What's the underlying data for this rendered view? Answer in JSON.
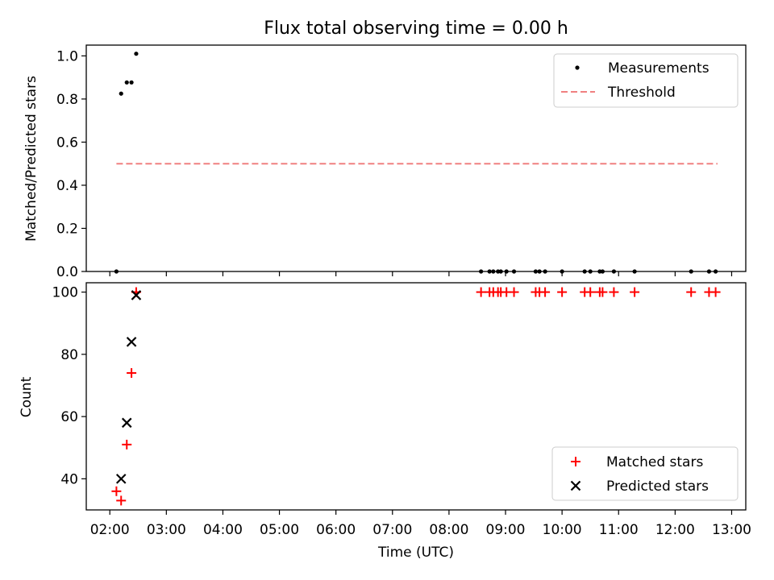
{
  "chart_data": [
    {
      "type": "scatter",
      "title": "Flux total observing time = 0.00 h",
      "xlabel": "",
      "ylabel": "Matched/Predicted stars",
      "ylim": [
        0,
        1.05
      ],
      "yticks": [
        "0.0",
        "0.2",
        "0.4",
        "0.6",
        "0.8",
        "1.0"
      ],
      "ytick_values": [
        0.0,
        0.2,
        0.4,
        0.6,
        0.8,
        1.0
      ],
      "grid": false,
      "legend_position": "top-right",
      "series": [
        {
          "name": "Measurements",
          "marker": "dot",
          "color": "#000000",
          "points": [
            [
              "02:07",
              0.0
            ],
            [
              "02:12",
              0.825
            ],
            [
              "02:18",
              0.877
            ],
            [
              "02:23",
              0.877
            ],
            [
              "02:28",
              1.01
            ],
            [
              "08:34",
              0.0
            ],
            [
              "08:43",
              0.0
            ],
            [
              "08:47",
              0.0
            ],
            [
              "08:52",
              0.0
            ],
            [
              "08:55",
              0.0
            ],
            [
              "09:01",
              0.0
            ],
            [
              "09:09",
              0.0
            ],
            [
              "09:32",
              0.0
            ],
            [
              "09:36",
              0.0
            ],
            [
              "09:42",
              0.0
            ],
            [
              "10:00",
              0.0
            ],
            [
              "10:24",
              0.0
            ],
            [
              "10:30",
              0.0
            ],
            [
              "10:40",
              0.0
            ],
            [
              "10:43",
              0.0
            ],
            [
              "10:55",
              0.0
            ],
            [
              "11:17",
              0.0
            ],
            [
              "12:17",
              0.0
            ],
            [
              "12:36",
              0.0
            ],
            [
              "12:43",
              0.0
            ]
          ]
        },
        {
          "name": "Threshold",
          "line": "dashed",
          "color": "#f08080",
          "points": [
            [
              "02:07",
              0.5
            ],
            [
              "12:45",
              0.5
            ]
          ]
        }
      ]
    },
    {
      "type": "scatter",
      "title": "",
      "xlabel": "Time (UTC)",
      "ylabel": "Count",
      "ylim": [
        30,
        103
      ],
      "yticks": [
        "40",
        "60",
        "80",
        "100"
      ],
      "ytick_values": [
        40,
        60,
        80,
        100
      ],
      "xlim": [
        "01:35",
        "13:15"
      ],
      "xticks": [
        "02:00",
        "03:00",
        "04:00",
        "05:00",
        "06:00",
        "07:00",
        "08:00",
        "09:00",
        "10:00",
        "11:00",
        "12:00",
        "13:00"
      ],
      "grid": false,
      "legend_position": "bottom-right",
      "series": [
        {
          "name": "Matched stars",
          "marker": "plus",
          "color": "#ff0000",
          "points": [
            [
              "02:07",
              36
            ],
            [
              "02:12",
              33
            ],
            [
              "02:18",
              51
            ],
            [
              "02:23",
              74
            ],
            [
              "02:28",
              100
            ],
            [
              "08:34",
              100
            ],
            [
              "08:43",
              100
            ],
            [
              "08:47",
              100
            ],
            [
              "08:52",
              100
            ],
            [
              "08:55",
              100
            ],
            [
              "09:01",
              100
            ],
            [
              "09:09",
              100
            ],
            [
              "09:32",
              100
            ],
            [
              "09:36",
              100
            ],
            [
              "09:42",
              100
            ],
            [
              "10:00",
              100
            ],
            [
              "10:24",
              100
            ],
            [
              "10:30",
              100
            ],
            [
              "10:40",
              100
            ],
            [
              "10:43",
              100
            ],
            [
              "10:55",
              100
            ],
            [
              "11:17",
              100
            ],
            [
              "12:17",
              100
            ],
            [
              "12:36",
              100
            ],
            [
              "12:43",
              100
            ]
          ]
        },
        {
          "name": "Predicted stars",
          "marker": "x",
          "color": "#000000",
          "points": [
            [
              "02:12",
              40
            ],
            [
              "02:18",
              58
            ],
            [
              "02:23",
              84
            ],
            [
              "02:28",
              99
            ]
          ]
        }
      ]
    }
  ]
}
